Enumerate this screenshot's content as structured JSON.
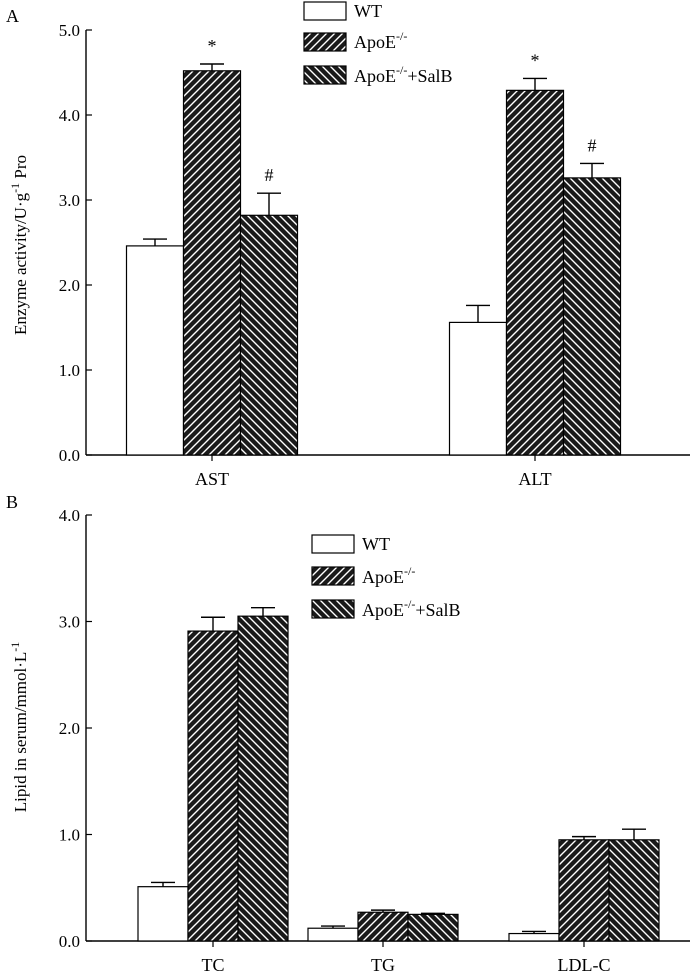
{
  "chart_data": [
    {
      "panel": "A",
      "type": "bar",
      "title": "",
      "xlabel": "",
      "ylabel": "Enzyme activity/U·g",
      "ylabel_sup": "-1",
      "ylabel_suffix": " Pro",
      "ylim": [
        0,
        5
      ],
      "yticks": [
        "0.0",
        "1.0",
        "2.0",
        "3.0",
        "4.0",
        "5.0"
      ],
      "categories": [
        "AST",
        "ALT"
      ],
      "series": [
        {
          "name": "WT",
          "values": [
            2.46,
            1.56
          ],
          "errors": [
            0.08,
            0.2
          ]
        },
        {
          "name": "ApoE",
          "values": [
            4.52,
            4.29
          ],
          "errors": [
            0.08,
            0.14
          ]
        },
        {
          "name": "ApoE+SalB",
          "values": [
            2.82,
            3.26
          ],
          "errors": [
            0.26,
            0.17
          ]
        }
      ],
      "annotations": [
        [
          "",
          "",
          ""
        ],
        [
          "",
          "",
          ""
        ]
      ],
      "annotation_symbols": {
        "apoe": "*",
        "salb": "#"
      },
      "legend": {
        "position": "top-center"
      }
    },
    {
      "panel": "B",
      "type": "bar",
      "title": "",
      "xlabel": "",
      "ylabel": "Lipid in serum/mmol·L",
      "ylabel_sup": "-1",
      "ylim": [
        0,
        4
      ],
      "yticks": [
        "0.0",
        "1.0",
        "2.0",
        "3.0",
        "4.0"
      ],
      "categories": [
        "TC",
        "TG",
        "LDL-C"
      ],
      "series": [
        {
          "name": "WT",
          "values": [
            0.51,
            0.12,
            0.07
          ],
          "errors": [
            0.04,
            0.02,
            0.02
          ]
        },
        {
          "name": "ApoE",
          "values": [
            2.91,
            0.27,
            0.95
          ],
          "errors": [
            0.13,
            0.02,
            0.03
          ]
        },
        {
          "name": "ApoE+SalB",
          "values": [
            3.05,
            0.25,
            0.95
          ],
          "errors": [
            0.08,
            0.01,
            0.1
          ]
        }
      ],
      "legend": {
        "position": "top-center"
      }
    }
  ],
  "legend_labels": {
    "wt": "WT",
    "apoe": "ApoE",
    "apoe_sup": "-/-",
    "salb_suffix": "+SalB"
  },
  "panel_labels": {
    "a": "A",
    "b": "B"
  }
}
